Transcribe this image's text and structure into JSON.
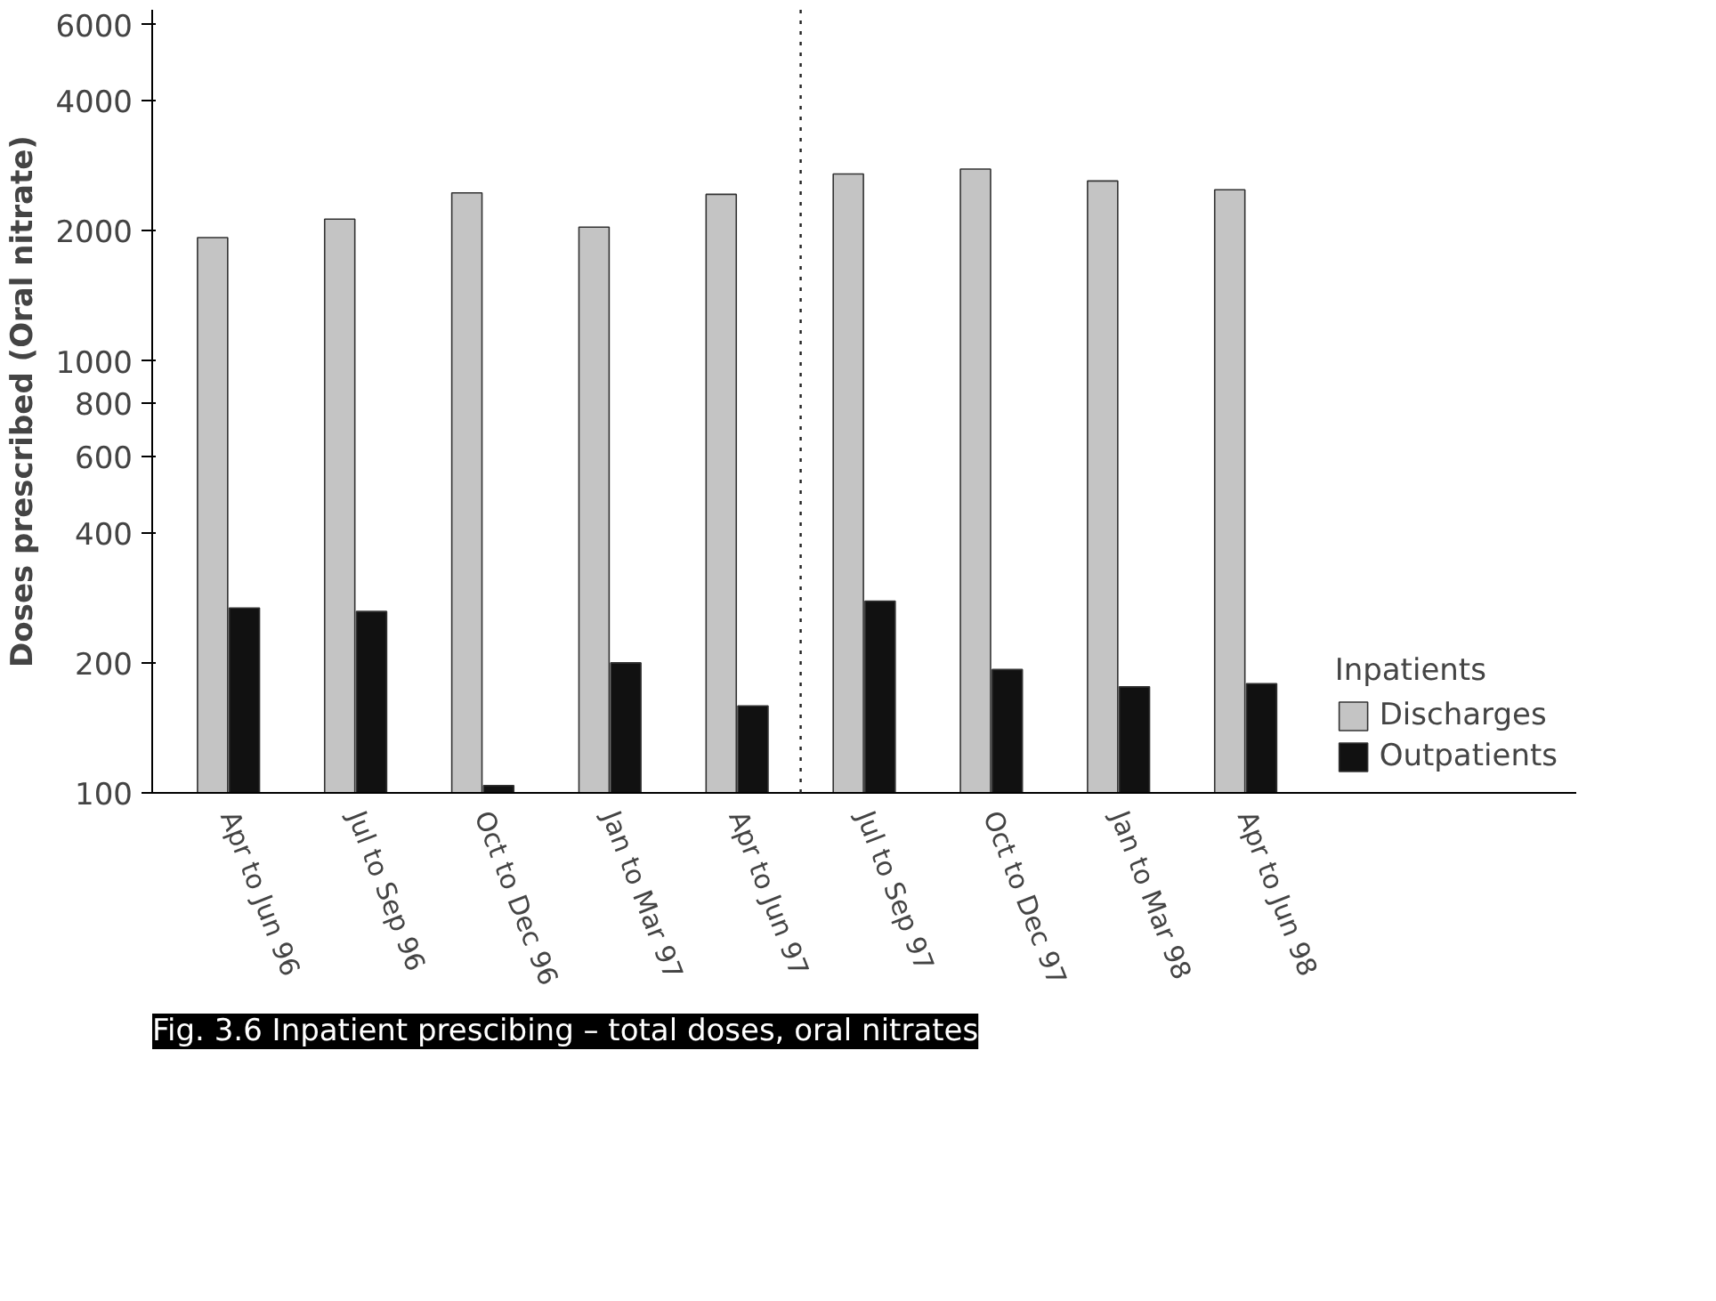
{
  "chart_data": {
    "type": "bar",
    "title": "Fig. 3.6 Inpatient prescibing – total doses, oral nitrates",
    "ylabel": "Doses prescribed (Oral nitrate)",
    "legend_title": "Inpatients",
    "categories": [
      "Apr to Jun 96",
      "Jul to Sep 96",
      "Oct to Dec 96",
      "Jan to Mar 97",
      "Apr to Jun 97",
      "Jul to Sep 97",
      "Oct to Dec 97",
      "Jan to Mar 98",
      "Apr to Jun 98"
    ],
    "series": [
      {
        "name": "Discharges",
        "color": "#c4c4c4",
        "values": [
          1930,
          2130,
          2450,
          2040,
          2430,
          2710,
          2780,
          2610,
          2490
        ]
      },
      {
        "name": "Outpatients",
        "color": "#111111",
        "values": [
          268,
          263,
          104,
          200,
          159,
          278,
          193,
          176,
          179
        ]
      }
    ],
    "log": "y",
    "ylim": [
      100,
      6500
    ],
    "yticks": [
      100,
      200,
      400,
      600,
      800,
      1000,
      2000,
      4000,
      6000
    ],
    "grid": false,
    "legend": "right"
  }
}
